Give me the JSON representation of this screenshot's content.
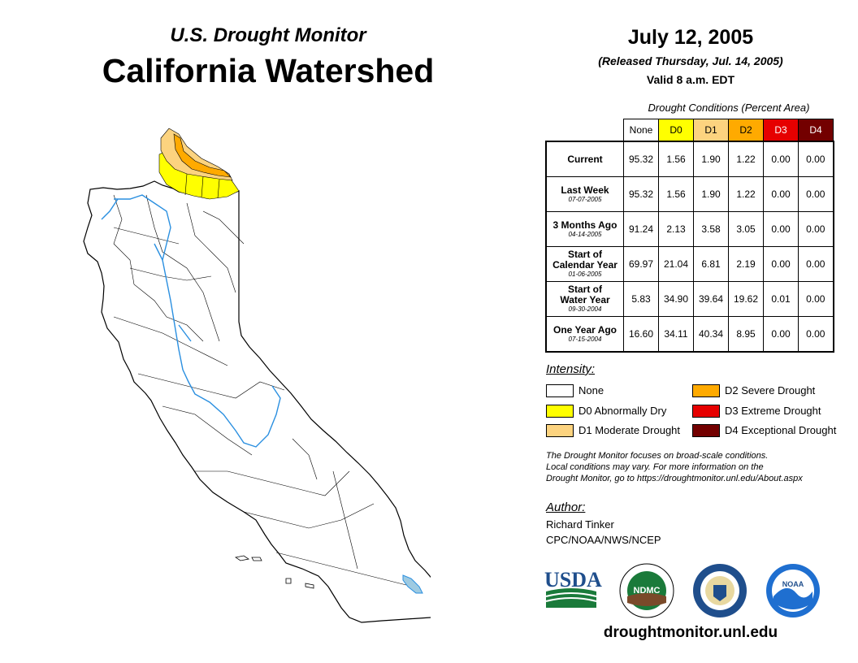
{
  "header": {
    "subtitle": "U.S. Drought Monitor",
    "title": "California Watershed",
    "date": "July 12, 2005",
    "released": "(Released Thursday, Jul. 14, 2005)",
    "valid": "Valid 8 a.m. EDT"
  },
  "conditions": {
    "caption": "Drought Conditions (Percent Area)",
    "columns": [
      "None",
      "D0",
      "D1",
      "D2",
      "D3",
      "D4"
    ],
    "column_colors": [
      "#ffffff",
      "#ffff00",
      "#fcd37f",
      "#ffaa00",
      "#e60000",
      "#730000"
    ],
    "rows": [
      {
        "label_lines": [
          "Current"
        ],
        "date": "",
        "values": [
          "95.32",
          "1.56",
          "1.90",
          "1.22",
          "0.00",
          "0.00"
        ]
      },
      {
        "label_lines": [
          "Last Week"
        ],
        "date": "07-07-2005",
        "values": [
          "95.32",
          "1.56",
          "1.90",
          "1.22",
          "0.00",
          "0.00"
        ]
      },
      {
        "label_lines": [
          "3 Months Ago"
        ],
        "date": "04-14-2005",
        "values": [
          "91.24",
          "2.13",
          "3.58",
          "3.05",
          "0.00",
          "0.00"
        ]
      },
      {
        "label_lines": [
          "Start of",
          "Calendar Year"
        ],
        "date": "01-06-2005",
        "values": [
          "69.97",
          "21.04",
          "6.81",
          "2.19",
          "0.00",
          "0.00"
        ]
      },
      {
        "label_lines": [
          "Start of",
          "Water Year"
        ],
        "date": "09-30-2004",
        "values": [
          "5.83",
          "34.90",
          "39.64",
          "19.62",
          "0.01",
          "0.00"
        ]
      },
      {
        "label_lines": [
          "One Year Ago"
        ],
        "date": "07-15-2004",
        "values": [
          "16.60",
          "34.11",
          "40.34",
          "8.95",
          "0.00",
          "0.00"
        ]
      }
    ]
  },
  "intensity": {
    "title": "Intensity:",
    "items": [
      {
        "label": "None",
        "color": "#ffffff"
      },
      {
        "label": "D0 Abnormally Dry",
        "color": "#ffff00"
      },
      {
        "label": "D1 Moderate Drought",
        "color": "#fcd37f"
      },
      {
        "label": "D2 Severe Drought",
        "color": "#ffaa00"
      },
      {
        "label": "D3 Extreme Drought",
        "color": "#e60000"
      },
      {
        "label": "D4 Exceptional Drought",
        "color": "#730000"
      }
    ]
  },
  "disclaimer": [
    "The Drought Monitor focuses on broad-scale conditions.",
    "Local conditions may vary. For more information on the",
    "Drought Monitor, go to https://droughtmonitor.unl.edu/About.aspx"
  ],
  "author": {
    "title": "Author:",
    "name": "Richard Tinker",
    "org": "CPC/NOAA/NWS/NCEP"
  },
  "logos": {
    "usda": "USDA",
    "ndmc": "NDMC",
    "noaa": "NOAA",
    "icons": [
      "usda-logo",
      "ndmc-logo",
      "commerce-seal",
      "noaa-logo"
    ]
  },
  "website": "droughtmonitor.unl.edu"
}
